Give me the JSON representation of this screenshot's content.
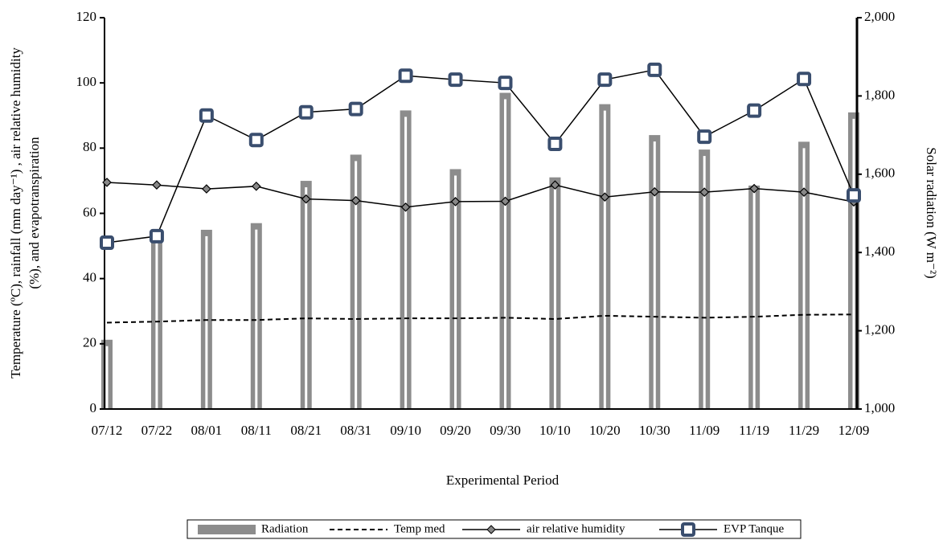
{
  "chart_data": {
    "type": "combo",
    "x_label": "Experimental Period",
    "y_label": [
      "Temperature (ºC), rainfall (mm day⁻¹) , air relative  humidity",
      "(%), and evapotranspiration"
    ],
    "y2_label": "Solar radiation  (W m⁻²)",
    "categories": [
      "07/12",
      "07/22",
      "08/01",
      "08/11",
      "08/21",
      "08/31",
      "09/10",
      "09/20",
      "09/30",
      "10/10",
      "10/20",
      "10/30",
      "11/09",
      "11/19",
      "11/29",
      "12/09"
    ],
    "ylim": [
      0,
      120
    ],
    "yticks": [
      0,
      20,
      40,
      60,
      80,
      100,
      120
    ],
    "y2lim": [
      1000,
      2000
    ],
    "y2ticks": [
      {
        "value": 1000,
        "label": "1,000"
      },
      {
        "value": 1200,
        "label": "1,200"
      },
      {
        "value": 1400,
        "label": "1,400"
      },
      {
        "value": 1600,
        "label": "1,600"
      },
      {
        "value": 1800,
        "label": "1,800"
      },
      {
        "value": 2000,
        "label": "2,000"
      }
    ],
    "series": [
      {
        "name": "Radiation",
        "kind": "bar",
        "axis": "y2",
        "color": "#8c8c8c",
        "values": [
          1177,
          1440,
          1458,
          1475,
          1583,
          1650,
          1763,
          1613,
          1808,
          1592,
          1779,
          1700,
          1663,
          1571,
          1683,
          1758
        ]
      },
      {
        "name": "Temp med",
        "kind": "line",
        "dash": true,
        "color": "#000000",
        "values": [
          26.5,
          26.8,
          27.3,
          27.3,
          27.8,
          27.6,
          27.8,
          27.8,
          28.0,
          27.6,
          28.6,
          28.3,
          28.0,
          28.3,
          28.9,
          29.0
        ]
      },
      {
        "name": "air relative humidity",
        "kind": "line",
        "marker": "diamond",
        "color": "#000000",
        "values": [
          69.5,
          68.7,
          67.5,
          68.3,
          64.4,
          63.9,
          61.9,
          63.6,
          63.7,
          68.7,
          65.0,
          66.6,
          66.5,
          67.6,
          66.5,
          63.5
        ]
      },
      {
        "name": "EVP Tanque",
        "kind": "line",
        "marker": "square",
        "color": "#3a4e6e",
        "values": [
          51,
          53,
          90,
          82.5,
          91,
          92,
          102.2,
          101,
          100,
          81.3,
          101,
          104,
          83.5,
          91.5,
          101.2,
          65.5
        ]
      }
    ]
  }
}
